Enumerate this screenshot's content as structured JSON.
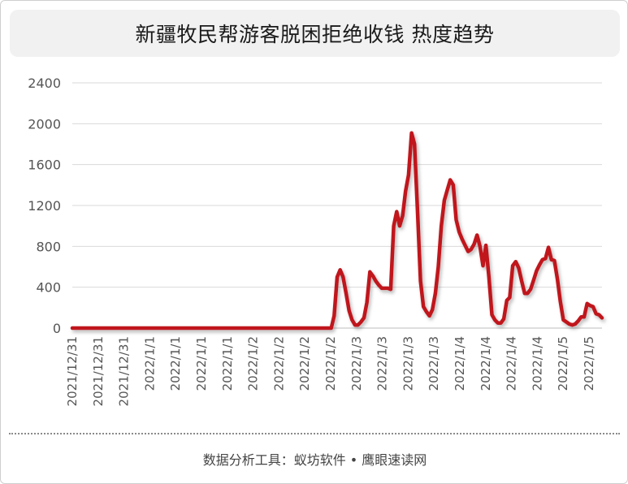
{
  "page": {
    "title": "新疆牧民帮游客脱困拒绝收钱 热度趋势",
    "footer": "数据分析工具：蚁坊软件 • 鹰眼速读网"
  },
  "colors": {
    "line": "#c0191f",
    "grid": "#d9d9d9",
    "axis_text": "#555555"
  },
  "chart_data": {
    "type": "line",
    "title": "新疆牧民帮游客脱困拒绝收钱 热度趋势",
    "xlabel": "",
    "ylabel": "",
    "ylim": [
      0,
      2400
    ],
    "yticks": [
      0,
      400,
      800,
      1200,
      1600,
      2000,
      2400
    ],
    "grid": true,
    "x_tick_labels": [
      "2021/12/31",
      "2021/12/31",
      "2021/12/31",
      "2022/1/1",
      "2022/1/1",
      "2022/1/1",
      "2022/1/1",
      "2022/1/2",
      "2022/1/2",
      "2022/1/2",
      "2022/1/2",
      "2022/1/3",
      "2022/1/3",
      "2022/1/3",
      "2022/1/3",
      "2022/1/4",
      "2022/1/4",
      "2022/1/4",
      "2022/1/4",
      "2022/1/5",
      "2022/1/5"
    ],
    "series": [
      {
        "values": [
          0,
          0,
          0,
          0,
          0,
          0,
          0,
          0,
          0,
          0,
          0,
          0,
          0,
          0,
          0,
          0,
          0,
          0,
          0,
          0,
          0,
          0,
          0,
          0,
          0,
          0,
          0,
          0,
          0,
          0,
          0,
          0,
          0,
          0,
          0,
          0,
          0,
          0,
          0,
          0,
          0,
          0,
          0,
          0,
          0,
          0,
          0,
          0,
          0,
          0,
          0,
          0,
          0,
          0,
          0,
          0,
          0,
          0,
          0,
          0,
          0,
          0,
          0,
          0,
          0,
          0,
          0,
          0,
          0,
          0,
          0,
          0,
          0,
          0,
          0,
          0,
          0,
          0,
          0,
          0,
          0,
          0,
          0,
          0,
          0,
          0,
          0,
          0,
          120,
          500,
          570,
          500,
          340,
          170,
          80,
          30,
          30,
          60,
          100,
          250,
          550,
          510,
          460,
          420,
          390,
          390,
          390,
          380,
          1000,
          1140,
          1000,
          1100,
          1340,
          1500,
          1910,
          1800,
          1150,
          460,
          210,
          160,
          120,
          180,
          340,
          600,
          1000,
          1250,
          1350,
          1450,
          1400,
          1060,
          940,
          870,
          810,
          750,
          770,
          820,
          910,
          800,
          610,
          810,
          500,
          130,
          80,
          50,
          50,
          90,
          270,
          300,
          610,
          650,
          590,
          460,
          340,
          340,
          380,
          470,
          560,
          620,
          670,
          680,
          790,
          670,
          660,
          480,
          260,
          80,
          60,
          40,
          30,
          40,
          70,
          110,
          110,
          240,
          220,
          210,
          140,
          130,
          100
        ]
      }
    ]
  }
}
